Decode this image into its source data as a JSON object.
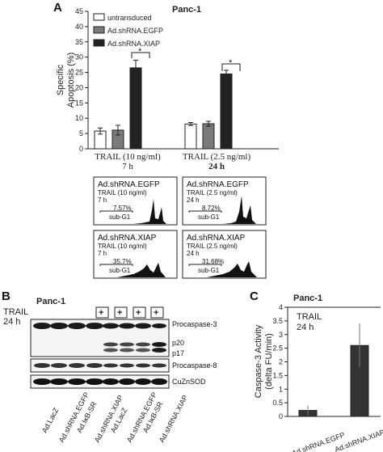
{
  "panelA": {
    "letter": "A",
    "title": "Panc-1",
    "ylabel_line1": "Specific",
    "ylabel_line2": "Apoptosis (%)",
    "legend": [
      "untransduced",
      "Ad.shRNA.EGFP",
      "Ad.shRNA.XIAP"
    ],
    "significance": "*",
    "group1_line1": "TRAIL (10 ng/ml)",
    "group1_line2": "7 h",
    "group2_line1": "TRAIL (2.5 ng/ml)",
    "group2_line2": "24 h",
    "yticks": [
      "0",
      "5",
      "10",
      "15",
      "20",
      "25",
      "30",
      "35",
      "40",
      "45"
    ]
  },
  "facs": [
    {
      "title": "Ad.shRNA.EGFP",
      "line1": "TRAIL (10 ng/ml)",
      "line2": "7 h",
      "pct": "7.57%",
      "gate": "sub-G1"
    },
    {
      "title": "Ad.shRNA.EGFP",
      "line1": "TRAIL (2.5 ng/ml)",
      "line2": "24 h",
      "pct": "8.72%",
      "gate": "sub-G1"
    },
    {
      "title": "Ad.shRNA.XIAP",
      "line1": "TRAIL (10 ng/ml)",
      "line2": "7 h",
      "pct": "35.7%",
      "gate": "sub-G1"
    },
    {
      "title": "Ad.shRNA.XIAP",
      "line1": "TRAIL (2.5 ng/ml)",
      "line2": "24 h",
      "pct": "31.68%",
      "gate": "sub-G1"
    }
  ],
  "panelB": {
    "letter": "B",
    "title": "Panc-1",
    "trail_line1": "TRAIL",
    "trail_line2": "24 h",
    "plus": "+",
    "bands": [
      "Procaspase-3",
      "p20",
      "p17",
      "Procaspase-8",
      "CuZnSOD"
    ],
    "lanes": [
      "Ad.LacZ",
      "Ad.shRNA.EGFP",
      "Ad.IκB-SR",
      "Ad.shRNA.XIAP",
      "Ad.LacZ",
      "Ad.shRNA.EGFP",
      "Ad.IκB-SR",
      "Ad.shRNA.XIAP"
    ]
  },
  "panelC": {
    "letter": "C",
    "title": "Panc-1",
    "ylabel_line1": "Caspase-3 Activity",
    "ylabel_line2": "(delta FU/min)",
    "inset_line1": "TRAIL",
    "inset_line2": "24 h",
    "yticks": [
      "0",
      "0.5",
      "1",
      "1.5",
      "2",
      "2.5",
      "3",
      "3.5",
      "4"
    ]
  },
  "chart_data": [
    {
      "type": "bar",
      "title": "Panc-1",
      "ylabel": "Specific Apoptosis (%)",
      "categories": [
        "TRAIL (10 ng/ml) 7 h",
        "TRAIL (2.5 ng/ml) 24 h"
      ],
      "ylim": [
        0,
        45
      ],
      "series": [
        {
          "name": "untransduced",
          "values": [
            5.8,
            8.1
          ],
          "errors": [
            1.0,
            0.5
          ],
          "color": "#ffffff"
        },
        {
          "name": "Ad.shRNA.EGFP",
          "values": [
            6.1,
            8.2
          ],
          "errors": [
            1.6,
            0.8
          ],
          "color": "#7a7a7a"
        },
        {
          "name": "Ad.shRNA.XIAP",
          "values": [
            26.5,
            24.5
          ],
          "errors": [
            2.5,
            1.2
          ],
          "color": "#222222"
        }
      ]
    },
    {
      "type": "bar",
      "title": "Panc-1",
      "ylabel": "Caspase-3 Activity (delta FU/min)",
      "categories": [
        "Ad.shRNA.EGFP",
        "Ad.shRNA.XIAP"
      ],
      "ylim": [
        0,
        4
      ],
      "values": [
        0.22,
        2.6
      ],
      "errors": [
        0.18,
        0.8
      ],
      "color": "#333333"
    }
  ]
}
